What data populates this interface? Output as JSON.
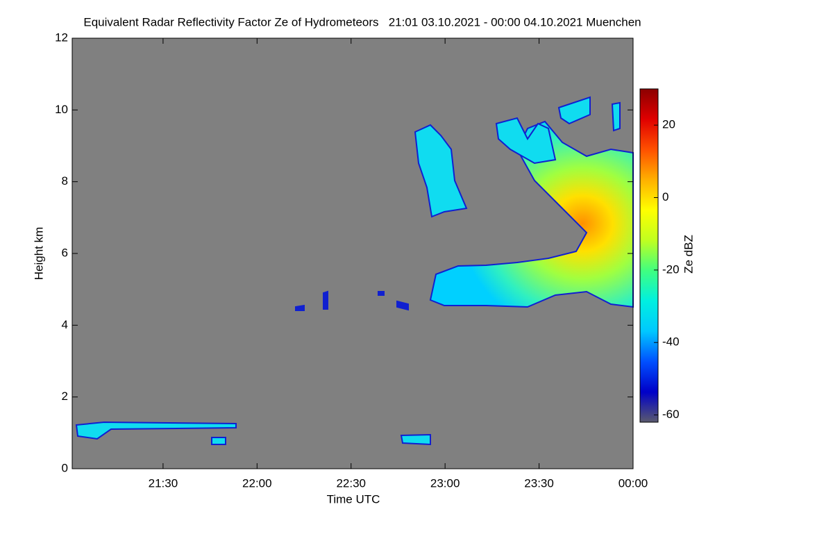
{
  "chart_data": {
    "type": "heatmap",
    "title": "Equivalent Radar Reflectivity Factor Ze of Hydrometeors   21:01 03.10.2021 - 00:00 04.10.2021 Muenchen",
    "x_label": "Time UTC",
    "y_label": "Height km",
    "colorbar_label": "Ze dBZ",
    "xlim": [
      21.0167,
      24.0
    ],
    "xticks": [
      {
        "value": 21.5,
        "label": "21:30"
      },
      {
        "value": 22,
        "label": "22:00"
      },
      {
        "value": 22.5,
        "label": "22:30"
      },
      {
        "value": 23,
        "label": "23:00"
      },
      {
        "value": 23.5,
        "label": "23:30"
      },
      {
        "value": 24,
        "label": "00:00"
      }
    ],
    "ylim": [
      0,
      12
    ],
    "yticks": [
      0,
      2,
      4,
      6,
      8,
      10,
      12
    ],
    "clim": [
      -62,
      30
    ],
    "cticks": [
      -60,
      -40,
      -20,
      0,
      20
    ],
    "colormap": [
      "#5a5a6e",
      "#0000c8",
      "#0050ff",
      "#00c8ff",
      "#00f0e0",
      "#40ff80",
      "#c0ff20",
      "#ffff00",
      "#ffb000",
      "#ff5000",
      "#e00000",
      "#8b0000"
    ],
    "background": "#808080"
  }
}
